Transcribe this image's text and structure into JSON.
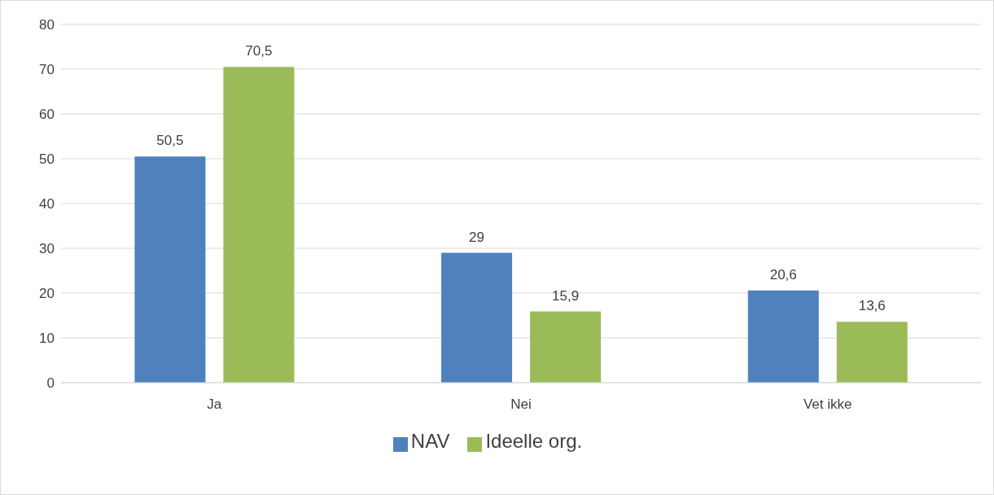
{
  "chart_data": {
    "type": "bar",
    "categories": [
      "Ja",
      "Nei",
      "Vet ikke"
    ],
    "series": [
      {
        "name": "NAV",
        "color": "#4f81bd",
        "values": [
          50.5,
          29,
          20.6
        ],
        "value_labels": [
          "50,5",
          "29",
          "20,6"
        ]
      },
      {
        "name": "Ideelle org.",
        "color": "#9bbb59",
        "values": [
          70.5,
          15.9,
          13.6
        ],
        "value_labels": [
          "70,5",
          "15,9",
          "13,6"
        ]
      }
    ],
    "ylim": [
      0,
      80
    ],
    "yticks": [
      0,
      10,
      20,
      30,
      40,
      50,
      60,
      70,
      80
    ],
    "grid": "y",
    "legend": "bottom"
  }
}
